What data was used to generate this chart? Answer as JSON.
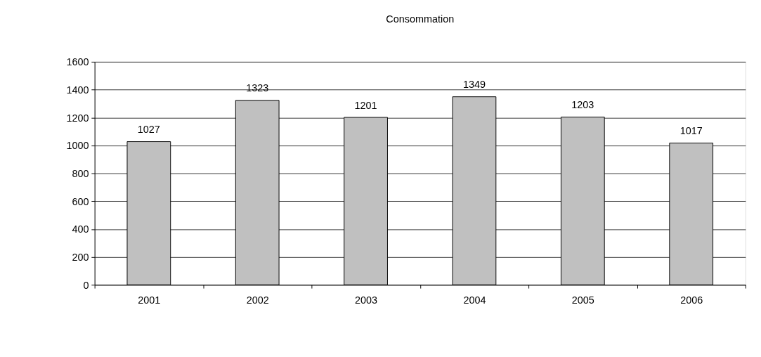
{
  "chart_data": {
    "type": "bar",
    "title": "Consommation",
    "categories": [
      "2001",
      "2002",
      "2003",
      "2004",
      "2005",
      "2006"
    ],
    "values": [
      1027,
      1323,
      1201,
      1349,
      1203,
      1017
    ],
    "color": "#c0c0c0",
    "ylim": [
      0,
      1600
    ],
    "yticks": [
      0,
      200,
      400,
      600,
      800,
      1000,
      1200,
      1400,
      1600
    ],
    "grid": "y",
    "data_labels": true
  }
}
